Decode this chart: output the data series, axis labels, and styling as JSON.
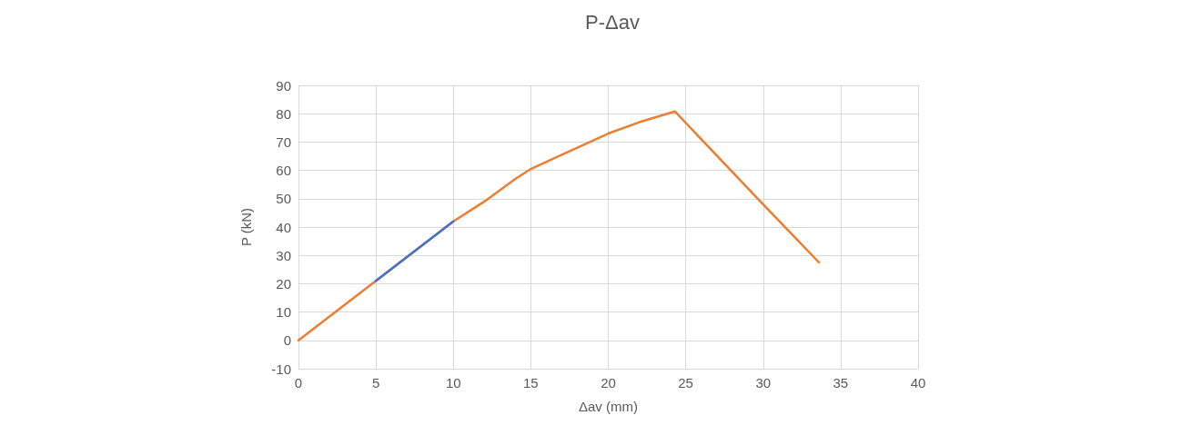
{
  "chart_data": {
    "type": "line",
    "title": "P-Δav",
    "xlabel": "Δav (mm)",
    "ylabel": "P (kN)",
    "xlim": [
      0,
      40
    ],
    "xticks": [
      0,
      5,
      10,
      15,
      20,
      25,
      30,
      35,
      40
    ],
    "ylim": [
      -10,
      90
    ],
    "yticks": [
      -10,
      0,
      10,
      20,
      30,
      40,
      50,
      60,
      70,
      80,
      90
    ],
    "grid": true,
    "marker": "none",
    "line_style": "solid",
    "series": [
      {
        "color": "#ed7d31",
        "x": [
          0,
          5,
          10,
          12,
          14,
          15,
          17,
          20,
          22,
          24.3,
          30,
          33.6
        ],
        "values": [
          0,
          21,
          42,
          49,
          57,
          60.5,
          65.5,
          73,
          77,
          80.8,
          48,
          27.5
        ]
      },
      {
        "color": "#4472c4",
        "x": [
          5,
          10
        ],
        "values": [
          21,
          42
        ]
      }
    ]
  }
}
